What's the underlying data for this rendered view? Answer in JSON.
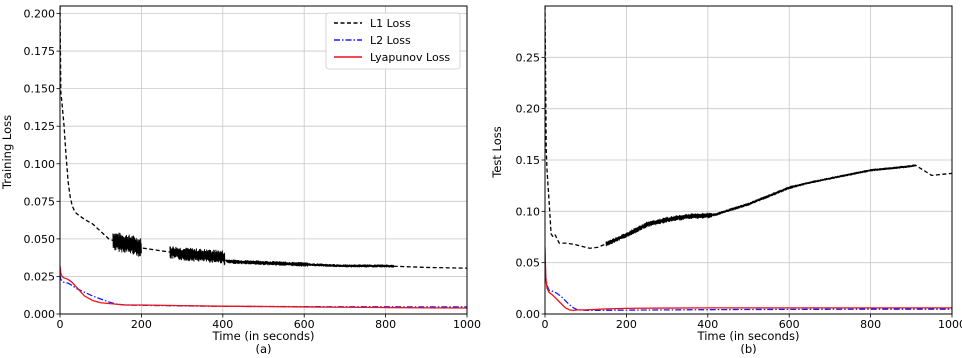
{
  "chart_data": [
    {
      "type": "line",
      "panel_label": "(a)",
      "xlabel": "Time (in seconds)",
      "ylabel": "Training Loss",
      "xlim": [
        0,
        1000
      ],
      "ylim": [
        0,
        0.205
      ],
      "xticks": [
        0,
        200,
        400,
        600,
        800,
        1000
      ],
      "yticks": [
        0.0,
        0.025,
        0.05,
        0.075,
        0.1,
        0.125,
        0.15,
        0.175,
        0.2
      ],
      "ytick_labels": [
        "0.000",
        "0.025",
        "0.050",
        "0.075",
        "0.100",
        "0.125",
        "0.150",
        "0.175",
        "0.200"
      ],
      "grid": true,
      "legend_position": "top-right",
      "series": [
        {
          "name": "L1 Loss",
          "color": "#000000",
          "dash": "dashed",
          "x": [
            0,
            2,
            5,
            10,
            15,
            20,
            25,
            30,
            35,
            40,
            50,
            60,
            80,
            100,
            120,
            140,
            160,
            180,
            200,
            250,
            300,
            350,
            400,
            410,
            500,
            600,
            700,
            800,
            900,
            1000
          ],
          "y": [
            0.205,
            0.148,
            0.14,
            0.125,
            0.105,
            0.088,
            0.078,
            0.072,
            0.069,
            0.067,
            0.065,
            0.063,
            0.06,
            0.055,
            0.05,
            0.048,
            0.047,
            0.046,
            0.044,
            0.042,
            0.04,
            0.039,
            0.038,
            0.035,
            0.034,
            0.033,
            0.032,
            0.032,
            0.031,
            0.0305
          ]
        },
        {
          "name": "L2 Loss",
          "color": "#1a1aff",
          "dash": "dashdot",
          "x": [
            0,
            2,
            5,
            10,
            20,
            30,
            40,
            60,
            80,
            100,
            120,
            140,
            160,
            200,
            300,
            400,
            500,
            600,
            700,
            800,
            900,
            1000
          ],
          "y": [
            0.026,
            0.023,
            0.022,
            0.021,
            0.0205,
            0.019,
            0.017,
            0.0145,
            0.012,
            0.01,
            0.008,
            0.0065,
            0.006,
            0.0058,
            0.0054,
            0.0051,
            0.005,
            0.0049,
            0.0048,
            0.0048,
            0.0047,
            0.0047
          ]
        },
        {
          "name": "Lyapunov Loss",
          "color": "#e8141a",
          "dash": "solid",
          "x": [
            0,
            2,
            5,
            10,
            20,
            30,
            40,
            50,
            60,
            80,
            100,
            120,
            140,
            160,
            200,
            300,
            400,
            500,
            600,
            700,
            800,
            900,
            1000
          ],
          "y": [
            0.032,
            0.027,
            0.025,
            0.024,
            0.023,
            0.021,
            0.018,
            0.015,
            0.012,
            0.009,
            0.0075,
            0.007,
            0.0065,
            0.006,
            0.006,
            0.0056,
            0.0052,
            0.005,
            0.0047,
            0.0045,
            0.0043,
            0.0041,
            0.004
          ]
        }
      ],
      "noise_segments": [
        {
          "series": "L1 Loss",
          "x_start": 130,
          "x_end": 200,
          "amplitude": 0.0065
        },
        {
          "series": "L1 Loss",
          "x_start": 270,
          "x_end": 405,
          "amplitude": 0.0045
        },
        {
          "series": "L1 Loss",
          "x_start": 410,
          "x_end": 610,
          "amplitude": 0.0015
        },
        {
          "series": "L1 Loss",
          "x_start": 610,
          "x_end": 820,
          "amplitude": 0.001
        }
      ]
    },
    {
      "type": "line",
      "panel_label": "(b)",
      "xlabel": "Time (in seconds)",
      "ylabel": "Test Loss",
      "xlim": [
        0,
        1000
      ],
      "ylim": [
        0,
        0.3
      ],
      "xticks": [
        0,
        200,
        400,
        600,
        800,
        1000
      ],
      "yticks": [
        0.0,
        0.05,
        0.1,
        0.15,
        0.2,
        0.25
      ],
      "ytick_labels": [
        "0.00",
        "0.05",
        "0.10",
        "0.15",
        "0.20",
        "0.25"
      ],
      "grid": true,
      "legend_position": "top-right",
      "series": [
        {
          "name": "L1 Loss",
          "color": "#000000",
          "dash": "dashed",
          "x": [
            0,
            3,
            5,
            10,
            15,
            20,
            25,
            30,
            35,
            40,
            50,
            70,
            90,
            110,
            130,
            160,
            200,
            250,
            300,
            350,
            400,
            420,
            500,
            550,
            600,
            650,
            700,
            750,
            800,
            850,
            900,
            910,
            950,
            1000
          ],
          "y": [
            0.3,
            0.16,
            0.14,
            0.11,
            0.078,
            0.075,
            0.077,
            0.073,
            0.069,
            0.069,
            0.069,
            0.068,
            0.066,
            0.064,
            0.065,
            0.07,
            0.077,
            0.087,
            0.092,
            0.095,
            0.096,
            0.097,
            0.107,
            0.115,
            0.123,
            0.128,
            0.132,
            0.136,
            0.14,
            0.142,
            0.144,
            0.145,
            0.135,
            0.137
          ]
        },
        {
          "name": "L2 Loss",
          "color": "#1a1aff",
          "dash": "dashdot",
          "x": [
            0,
            2,
            5,
            10,
            20,
            30,
            40,
            50,
            60,
            70,
            80,
            100,
            150,
            200,
            300,
            400,
            500,
            600,
            700,
            800,
            900,
            1000
          ],
          "y": [
            0.05,
            0.035,
            0.028,
            0.023,
            0.022,
            0.02,
            0.017,
            0.013,
            0.009,
            0.006,
            0.004,
            0.0035,
            0.0036,
            0.0038,
            0.004,
            0.0042,
            0.0044,
            0.0045,
            0.0046,
            0.0047,
            0.0047,
            0.0047
          ]
        },
        {
          "name": "Lyapunov Loss",
          "color": "#e8141a",
          "dash": "solid",
          "x": [
            0,
            2,
            5,
            10,
            20,
            30,
            40,
            50,
            60,
            70,
            80,
            100,
            150,
            200,
            300,
            400,
            500,
            600,
            700,
            800,
            900,
            1000
          ],
          "y": [
            0.065,
            0.035,
            0.025,
            0.021,
            0.018,
            0.014,
            0.01,
            0.006,
            0.004,
            0.0035,
            0.004,
            0.004,
            0.005,
            0.0055,
            0.0058,
            0.006,
            0.006,
            0.006,
            0.006,
            0.006,
            0.006,
            0.006
          ]
        }
      ],
      "noise_segments": [
        {
          "series": "L1 Loss",
          "x_start": 150,
          "x_end": 205,
          "amplitude": 0.0025
        },
        {
          "series": "L1 Loss",
          "x_start": 205,
          "x_end": 410,
          "amplitude": 0.0028
        },
        {
          "series": "L1 Loss",
          "x_start": 410,
          "x_end": 620,
          "amplitude": 0.0015
        },
        {
          "series": "L1 Loss",
          "x_start": 620,
          "x_end": 910,
          "amplitude": 0.0012
        }
      ]
    }
  ]
}
